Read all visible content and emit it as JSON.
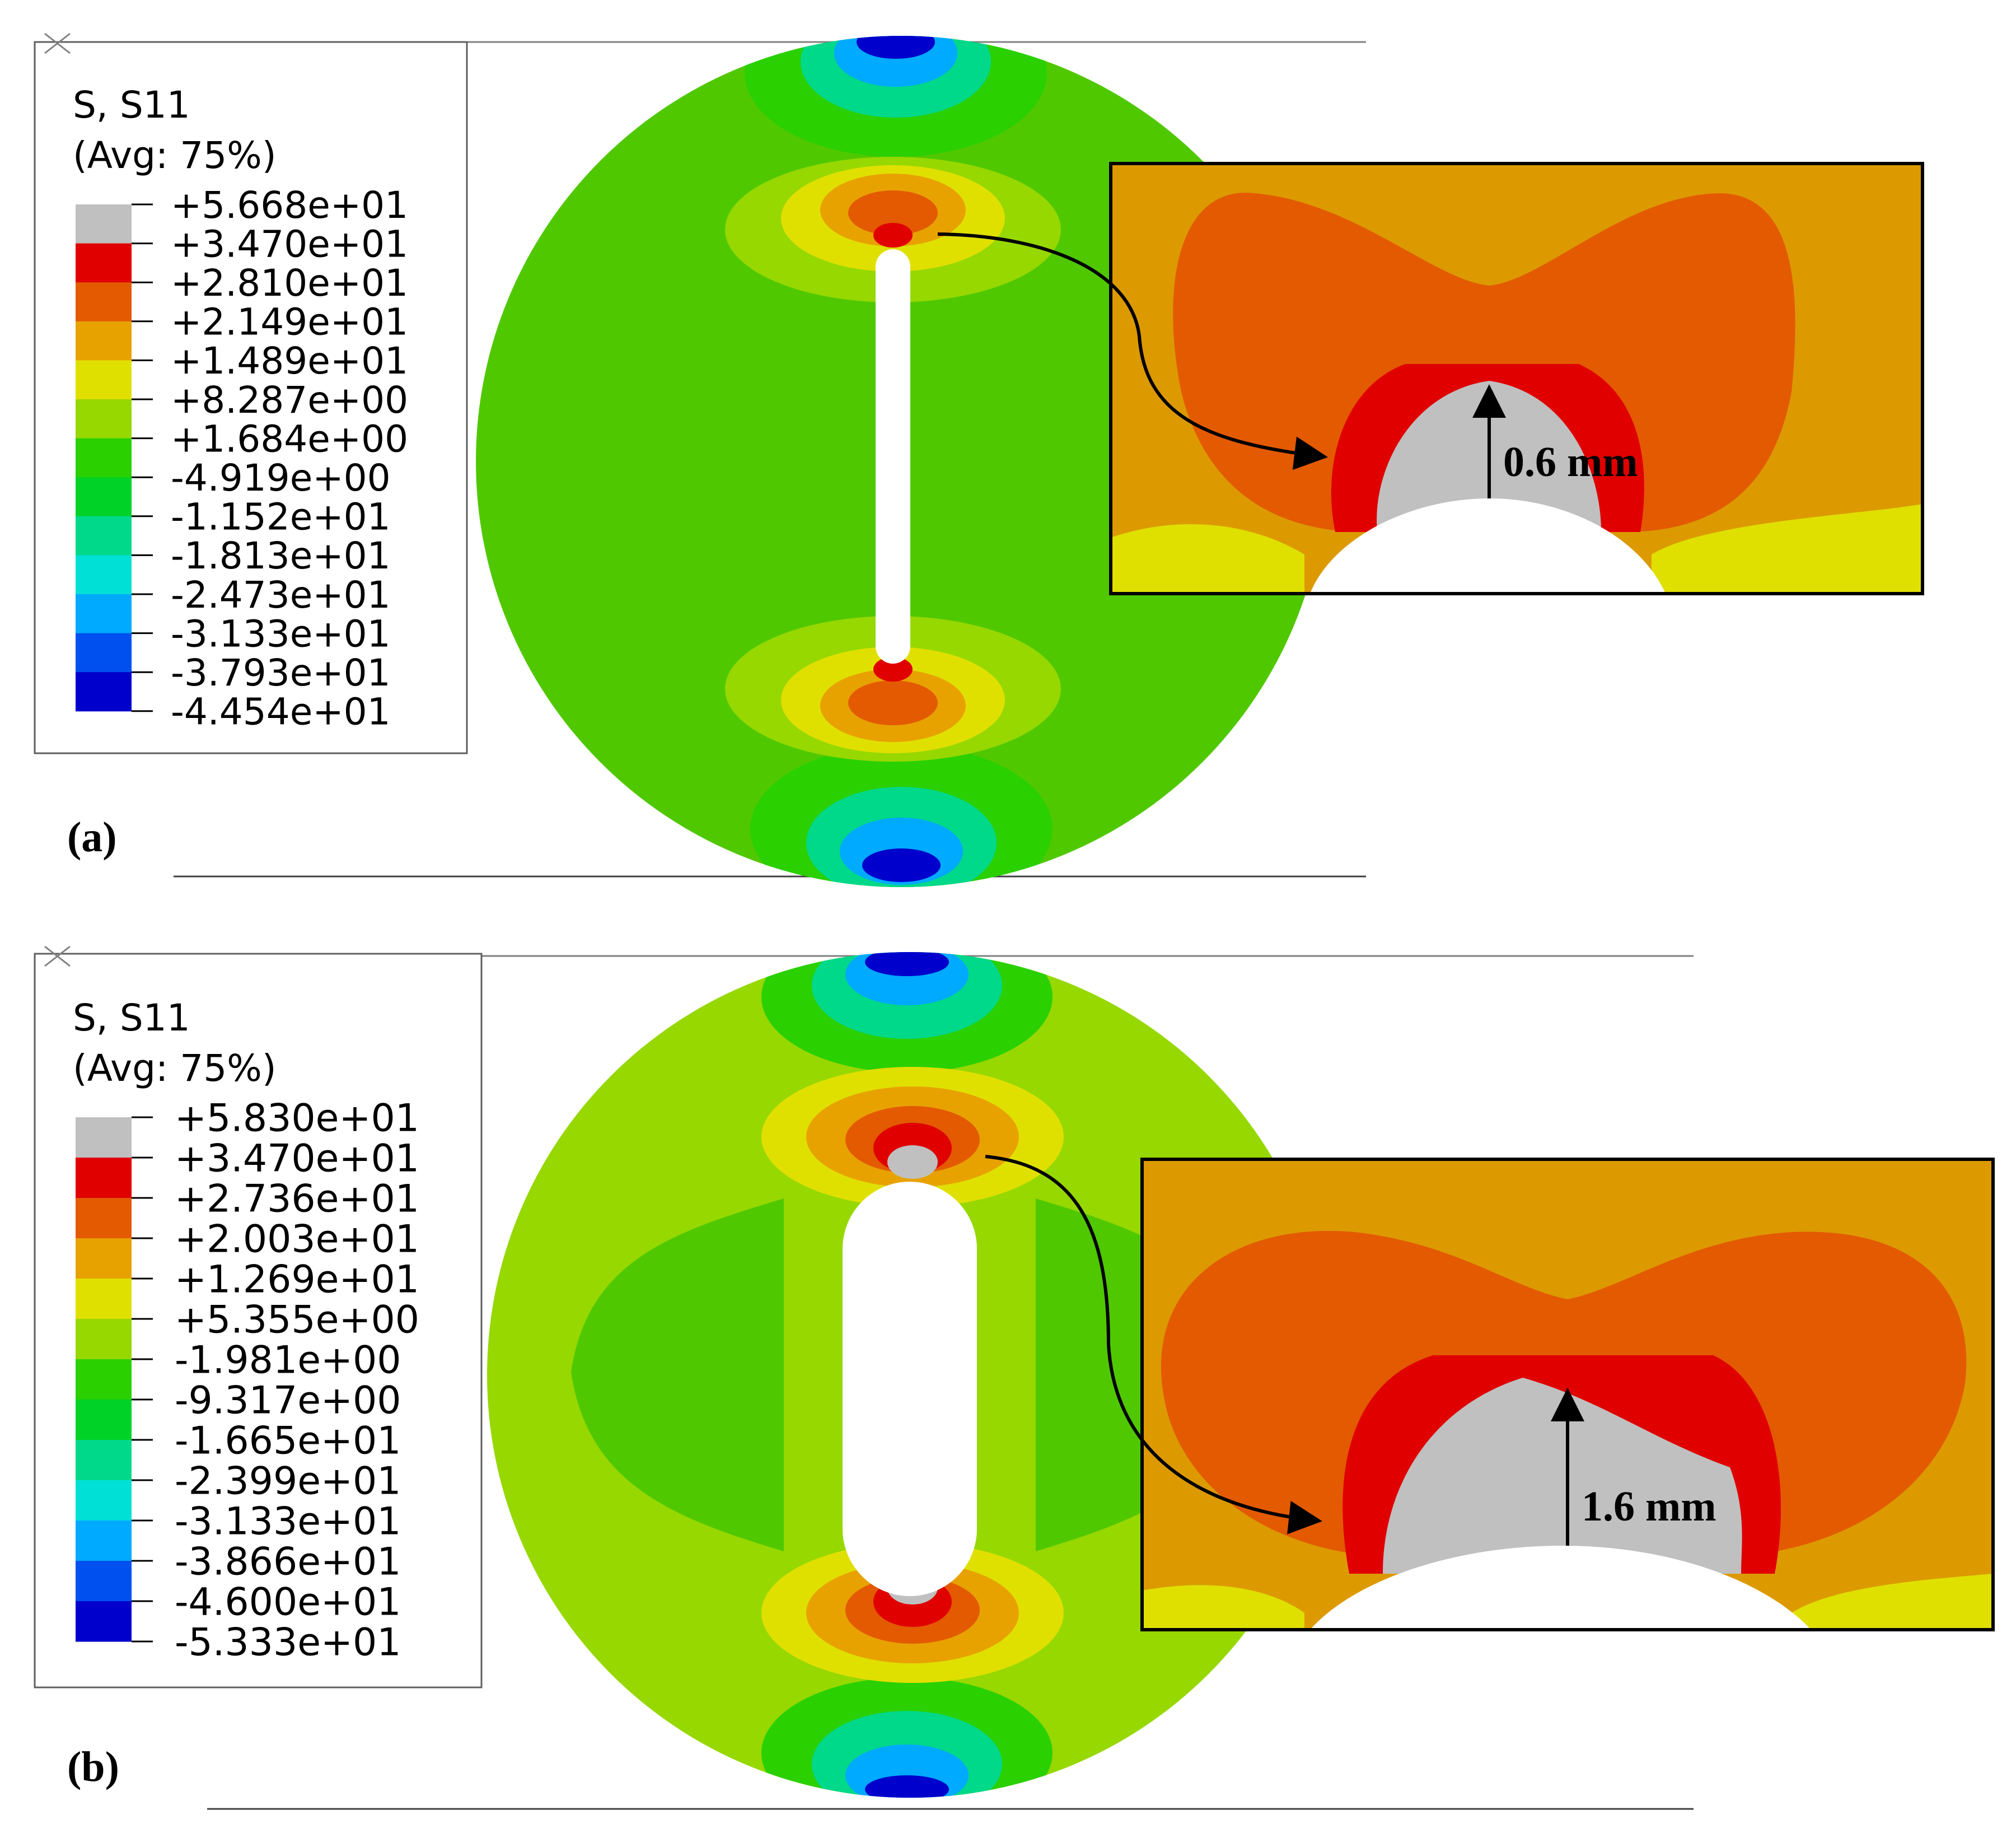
{
  "panels": [
    {
      "id": "a",
      "label": "(a)",
      "legend": {
        "title": "S, S11",
        "subtitle": "(Avg: 75%)",
        "values": [
          "+5.668e+01",
          "+3.470e+01",
          "+2.810e+01",
          "+2.149e+01",
          "+1.489e+01",
          "+8.287e+00",
          "+1.684e+00",
          "-4.919e+00",
          "-1.152e+01",
          "-1.813e+01",
          "-2.473e+01",
          "-3.133e+01",
          "-3.793e+01",
          "-4.454e+01"
        ]
      },
      "inset_label": "0.6 mm"
    },
    {
      "id": "b",
      "label": "(b)",
      "legend": {
        "title": "S, S11",
        "subtitle": "(Avg: 75%)",
        "values": [
          "+5.830e+01",
          "+3.470e+01",
          "+2.736e+01",
          "+2.003e+01",
          "+1.269e+01",
          "+5.355e+00",
          "-1.981e+00",
          "-9.317e+00",
          "-1.665e+01",
          "-2.399e+01",
          "-3.133e+01",
          "-3.866e+01",
          "-4.600e+01",
          "-5.333e+01"
        ]
      },
      "inset_label": "1.6 mm"
    }
  ],
  "colors": {
    "scale": [
      "#c0c0c0",
      "#e00000",
      "#e35a00",
      "#e8a200",
      "#e0e000",
      "#96d800",
      "#2ad000",
      "#00d228",
      "#00d88a",
      "#00e0d6",
      "#00aaff",
      "#0050f0",
      "#0000cc"
    ],
    "background": "#50c800",
    "hole": "#ffffff",
    "inset_bg": "#dc9a00"
  }
}
